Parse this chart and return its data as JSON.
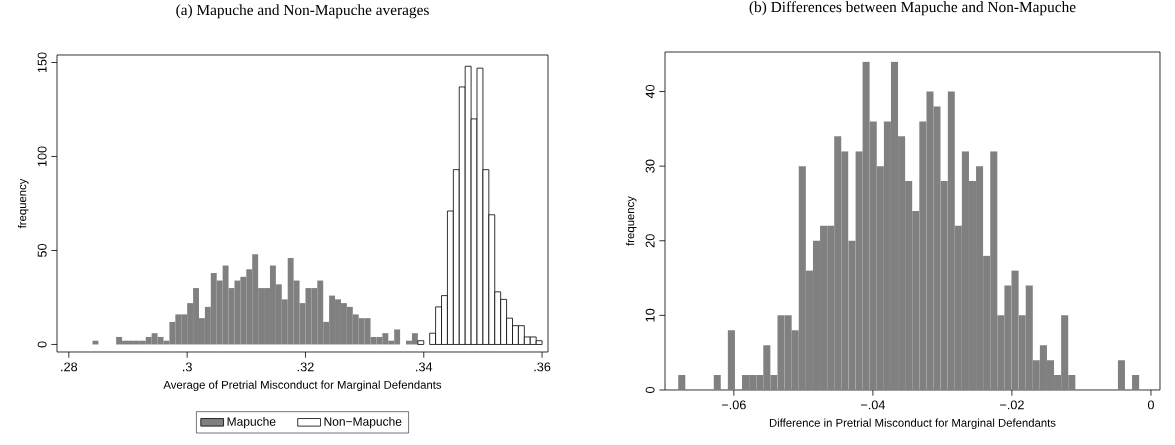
{
  "chart_data": [
    {
      "type": "histogram",
      "title": "(a) Mapuche and Non-Mapuche averages",
      "xlabel": "Average of Pretrial Misconduct for Marginal Defendants",
      "ylabel": "frequency",
      "xlim": [
        0.278,
        0.361
      ],
      "ylim": [
        -4,
        154
      ],
      "xticks": [
        {
          "value": 0.28,
          "label": ".28"
        },
        {
          "value": 0.3,
          "label": ".3"
        },
        {
          "value": 0.32,
          "label": ".32"
        },
        {
          "value": 0.34,
          "label": ".34"
        },
        {
          "value": 0.36,
          "label": ".36"
        }
      ],
      "yticks": [
        0,
        50,
        100,
        150
      ],
      "legend": "bottom",
      "bins": [
        0.284,
        0.285,
        0.286,
        0.287,
        0.288,
        0.289,
        0.29,
        0.291,
        0.292,
        0.293,
        0.294,
        0.295,
        0.296,
        0.297,
        0.298,
        0.299,
        0.3,
        0.301,
        0.302,
        0.303,
        0.304,
        0.305,
        0.306,
        0.307,
        0.308,
        0.309,
        0.31,
        0.311,
        0.312,
        0.313,
        0.314,
        0.315,
        0.316,
        0.317,
        0.318,
        0.319,
        0.32,
        0.321,
        0.322,
        0.323,
        0.324,
        0.325,
        0.326,
        0.327,
        0.328,
        0.329,
        0.33,
        0.331,
        0.332,
        0.333,
        0.334,
        0.335,
        0.336,
        0.337,
        0.338,
        0.339,
        0.34,
        0.341,
        0.342,
        0.343,
        0.344,
        0.345,
        0.346,
        0.347,
        0.348,
        0.349,
        0.35,
        0.351,
        0.352,
        0.353,
        0.354,
        0.355,
        0.356,
        0.357,
        0.358,
        0.359,
        0.36
      ],
      "series": [
        {
          "name": "Mapuche",
          "color": "#808080",
          "values": [
            2,
            0,
            0,
            0,
            4,
            2,
            2,
            2,
            2,
            4,
            6,
            4,
            2,
            12,
            16,
            16,
            22,
            30,
            14,
            20,
            38,
            34,
            42,
            30,
            34,
            36,
            40,
            48,
            30,
            30,
            42,
            32,
            24,
            46,
            34,
            22,
            30,
            30,
            34,
            12,
            26,
            24,
            22,
            20,
            16,
            14,
            14,
            4,
            4,
            6,
            2,
            8,
            0,
            2,
            6,
            0,
            0,
            0,
            0,
            0,
            0,
            0,
            0,
            0,
            0,
            0,
            0,
            0,
            0,
            0,
            0,
            0,
            0,
            0,
            0,
            0
          ]
        },
        {
          "name": "Non−Mapuche",
          "color": "#ffffff",
          "values": [
            0,
            0,
            0,
            0,
            0,
            0,
            0,
            0,
            0,
            0,
            0,
            0,
            0,
            0,
            0,
            0,
            0,
            0,
            0,
            0,
            0,
            0,
            0,
            0,
            0,
            0,
            0,
            0,
            0,
            0,
            0,
            0,
            0,
            0,
            0,
            0,
            0,
            0,
            0,
            0,
            0,
            0,
            0,
            0,
            0,
            0,
            0,
            0,
            0,
            0,
            0,
            0,
            0,
            0,
            0,
            2,
            0,
            6,
            20,
            26,
            71,
            93,
            137,
            148,
            120,
            147,
            93,
            69,
            28,
            24,
            14,
            10,
            10,
            4,
            4,
            2
          ]
        }
      ]
    },
    {
      "type": "histogram",
      "title": "(b) Differences between Mapuche and Non-Mapuche",
      "xlabel": "Difference in Pretrial Misconduct for Marginal Defendants",
      "ylabel": "frequency",
      "xlim": [
        -0.0699,
        0.0013
      ],
      "ylim": [
        0,
        45.3
      ],
      "xticks": [
        {
          "value": -0.06,
          "label": "−.06"
        },
        {
          "value": -0.04,
          "label": "−.04"
        },
        {
          "value": -0.02,
          "label": "−.02"
        },
        0
      ],
      "yticks": [
        0,
        10,
        20,
        30,
        40
      ],
      "color": "#808080",
      "bins": [
        -0.068,
        -0.06698,
        -0.06596,
        -0.06494,
        -0.06392,
        -0.0629,
        -0.06188,
        -0.06086,
        -0.05984,
        -0.05882,
        -0.0578,
        -0.05678,
        -0.05576,
        -0.05474,
        -0.05372,
        -0.0527,
        -0.05168,
        -0.05066,
        -0.04964,
        -0.04862,
        -0.0476,
        -0.04658,
        -0.04556,
        -0.04454,
        -0.04352,
        -0.0425,
        -0.04148,
        -0.04046,
        -0.03944,
        -0.03842,
        -0.0374,
        -0.03638,
        -0.03536,
        -0.03434,
        -0.03332,
        -0.0323,
        -0.03128,
        -0.03026,
        -0.02924,
        -0.02822,
        -0.0272,
        -0.02618,
        -0.02516,
        -0.02414,
        -0.02312,
        -0.0221,
        -0.02108,
        -0.02006,
        -0.01904,
        -0.01802,
        -0.017,
        -0.01598,
        -0.01496,
        -0.01394,
        -0.01292,
        -0.0119,
        -0.01088,
        -0.00986,
        -0.00884,
        -0.00782,
        -0.0068,
        -0.00578,
        -0.00476,
        -0.00374,
        -0.00272,
        -0.0017
      ],
      "values": [
        2,
        0,
        0,
        0,
        0,
        2,
        0,
        8,
        0,
        2,
        2,
        2,
        6,
        2,
        10,
        10,
        8,
        30,
        16,
        20,
        22,
        22,
        34,
        32,
        20,
        32,
        44,
        36,
        30,
        36,
        44,
        34,
        28,
        24,
        36,
        40,
        38,
        28,
        40,
        22,
        32,
        28,
        30,
        18,
        32,
        10,
        14,
        16,
        10,
        14,
        4,
        6,
        4,
        2,
        10,
        2,
        0,
        0,
        0,
        0,
        0,
        0,
        4,
        0,
        2
      ]
    }
  ]
}
